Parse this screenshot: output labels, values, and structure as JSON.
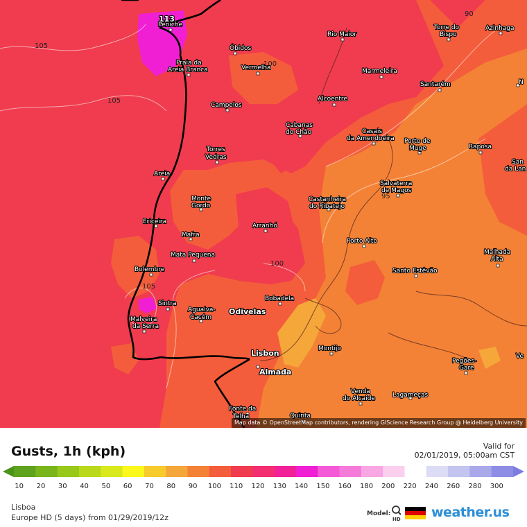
{
  "legend": {
    "title": "Gusts, 1h (kph)",
    "valid_label": "Valid for",
    "valid_time": "02/01/2019, 05:00am CST",
    "location": "Lisboa",
    "model_run": "Europe HD (5 days) from 01/29/2019/12z",
    "model_label": "Model:",
    "brand": "weather.us",
    "scale": [
      {
        "value": "10",
        "color": "#5fa21e"
      },
      {
        "value": "20",
        "color": "#79b51a"
      },
      {
        "value": "30",
        "color": "#98c81a"
      },
      {
        "value": "40",
        "color": "#b9d91a"
      },
      {
        "value": "50",
        "color": "#d9e91c"
      },
      {
        "value": "60",
        "color": "#fbf81c"
      },
      {
        "value": "70",
        "color": "#f7cb2b"
      },
      {
        "value": "80",
        "color": "#f5a73a"
      },
      {
        "value": "90",
        "color": "#f48236"
      },
      {
        "value": "100",
        "color": "#f45d3b"
      },
      {
        "value": "110",
        "color": "#f03c4e"
      },
      {
        "value": "120",
        "color": "#f32e71"
      },
      {
        "value": "130",
        "color": "#f22197"
      },
      {
        "value": "140",
        "color": "#f11fd3"
      },
      {
        "value": "150",
        "color": "#f45ad8"
      },
      {
        "value": "160",
        "color": "#f57bdb"
      },
      {
        "value": "180",
        "color": "#f8a6e4"
      },
      {
        "value": "200",
        "color": "#fbcfee"
      },
      {
        "value": "220",
        "color": "#ffffff"
      },
      {
        "value": "240",
        "color": "#dcdcf6"
      },
      {
        "value": "260",
        "color": "#c4c4f0"
      },
      {
        "value": "280",
        "color": "#a9a9ea"
      },
      {
        "value": "300",
        "color": "#8d8de6"
      }
    ]
  },
  "map": {
    "attribution": "Map data © OpenStreetMap contributors, rendering GIScience Research Group @ Heidelberg University",
    "peak_label": "113",
    "isolines": [
      "105",
      "105",
      "105",
      "100",
      "100",
      "95",
      "90"
    ],
    "cities": [
      {
        "name": "Peniche"
      },
      {
        "name": "Praia da"
      },
      {
        "name": "Areia Branca"
      },
      {
        "name": "Campelos"
      },
      {
        "name": "Torres"
      },
      {
        "name": "Vedras"
      },
      {
        "name": "Areia"
      },
      {
        "name": "Monte"
      },
      {
        "name": "Gordo"
      },
      {
        "name": "Ericeira"
      },
      {
        "name": "Mafra"
      },
      {
        "name": "Mata Pequena"
      },
      {
        "name": "Bolembre"
      },
      {
        "name": "Sintra"
      },
      {
        "name": "Malveira"
      },
      {
        "name": "da Serra"
      },
      {
        "name": "Agualva-"
      },
      {
        "name": "Cacém"
      },
      {
        "name": "Odivelas"
      },
      {
        "name": "Lisbon"
      },
      {
        "name": "Almada"
      },
      {
        "name": "Fonte da"
      },
      {
        "name": "Telha"
      },
      {
        "name": "Quinta"
      },
      {
        "name": "Óbidos"
      },
      {
        "name": "Vermelha"
      },
      {
        "name": "Cabanas"
      },
      {
        "name": "do Chão"
      },
      {
        "name": "Arranhó"
      },
      {
        "name": "Bobadela"
      },
      {
        "name": "Montijo"
      },
      {
        "name": "Venda"
      },
      {
        "name": "do Alcaide"
      },
      {
        "name": "Lagameças"
      },
      {
        "name": "Rio Maior"
      },
      {
        "name": "Marmeleira"
      },
      {
        "name": "Alcoentre"
      },
      {
        "name": "Casais"
      },
      {
        "name": "da Amendoeira"
      },
      {
        "name": "Castanheira"
      },
      {
        "name": "do Ribatejo"
      },
      {
        "name": "Porto Alto"
      },
      {
        "name": "Salvaterra"
      },
      {
        "name": "de Magos"
      },
      {
        "name": "Porto de"
      },
      {
        "name": "Muge"
      },
      {
        "name": "Santo Estêvão"
      },
      {
        "name": "Torre do"
      },
      {
        "name": "Bispo"
      },
      {
        "name": "Azinhaga"
      },
      {
        "name": "Santarém"
      },
      {
        "name": "Raposa"
      },
      {
        "name": "San"
      },
      {
        "name": "da Lan"
      },
      {
        "name": "Malhada"
      },
      {
        "name": "Alta"
      },
      {
        "name": "Pegões-"
      },
      {
        "name": "Gare"
      },
      {
        "name": "Ve"
      },
      {
        "name": "N"
      }
    ]
  }
}
